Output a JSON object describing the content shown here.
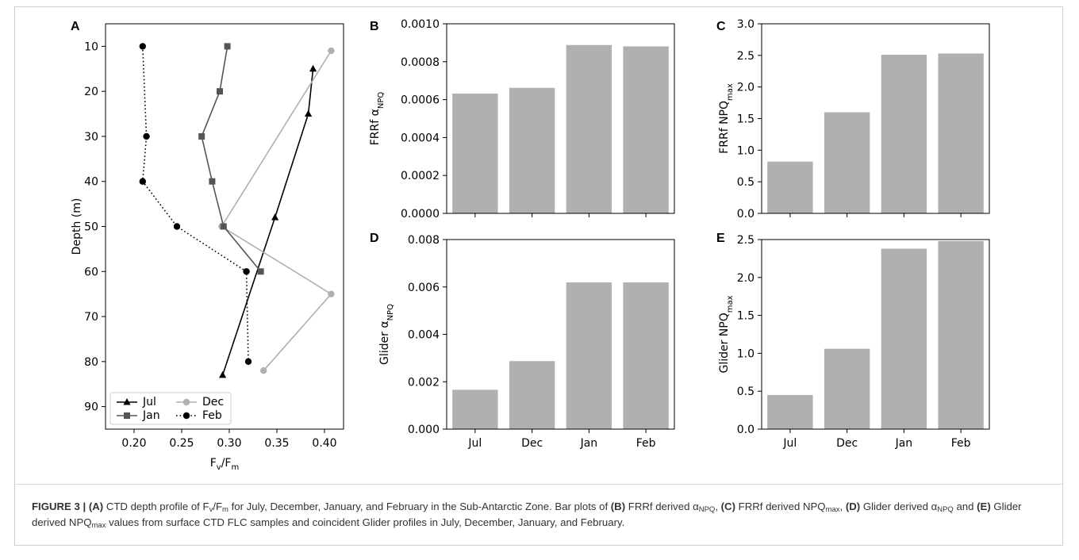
{
  "chart_data": [
    {
      "id": "A",
      "type": "line",
      "panel_label": "A",
      "xlabel_main": "F",
      "xlabel_sub1": "v",
      "xlabel_mid": "/F",
      "xlabel_sub2": "m",
      "ylabel": "Depth (m)",
      "xlim": [
        0.17,
        0.42
      ],
      "ylim": [
        95,
        5
      ],
      "xticks": [
        0.2,
        0.25,
        0.3,
        0.35,
        0.4
      ],
      "yticks": [
        10,
        20,
        30,
        40,
        50,
        60,
        70,
        80,
        90
      ],
      "legend_position": "lower-left",
      "series": [
        {
          "name": "Jul",
          "color": "#000000",
          "marker": "triangle",
          "dash": "solid",
          "points": [
            [
              0.388,
              15
            ],
            [
              0.383,
              25
            ],
            [
              0.348,
              48
            ],
            [
              0.293,
              83
            ]
          ]
        },
        {
          "name": "Dec",
          "color": "#b0b0b0",
          "marker": "circle",
          "dash": "solid",
          "points": [
            [
              0.407,
              11
            ],
            [
              0.292,
              50
            ],
            [
              0.407,
              65
            ],
            [
              0.336,
              82
            ]
          ]
        },
        {
          "name": "Jan",
          "color": "#555555",
          "marker": "square",
          "dash": "solid",
          "points": [
            [
              0.298,
              10
            ],
            [
              0.29,
              20
            ],
            [
              0.271,
              30
            ],
            [
              0.282,
              40
            ],
            [
              0.294,
              50
            ],
            [
              0.333,
              60
            ]
          ]
        },
        {
          "name": "Feb",
          "color": "#000000",
          "marker": "circle",
          "dash": "dotted",
          "points": [
            [
              0.209,
              10
            ],
            [
              0.213,
              30
            ],
            [
              0.209,
              40
            ],
            [
              0.245,
              50
            ],
            [
              0.318,
              60
            ],
            [
              0.32,
              80
            ]
          ]
        }
      ]
    },
    {
      "id": "B",
      "type": "bar",
      "panel_label": "B",
      "ylabel_main": "FRRf α",
      "ylabel_sub": "NPQ",
      "categories": [
        "Jul",
        "Dec",
        "Jan",
        "Feb"
      ],
      "values": [
        0.000632,
        0.000662,
        0.000888,
        0.000881
      ],
      "ylim": [
        0,
        0.001
      ],
      "yticks": [
        "0.0000",
        "0.0002",
        "0.0004",
        "0.0006",
        "0.0008",
        "0.0010"
      ],
      "show_xticks": false
    },
    {
      "id": "C",
      "type": "bar",
      "panel_label": "C",
      "ylabel_main": "FRRf NPQ",
      "ylabel_sub": "max",
      "categories": [
        "Jul",
        "Dec",
        "Jan",
        "Feb"
      ],
      "values": [
        0.82,
        1.6,
        2.51,
        2.53
      ],
      "ylim": [
        0,
        3.0
      ],
      "yticks": [
        "0.0",
        "0.5",
        "1.0",
        "1.5",
        "2.0",
        "2.5",
        "3.0"
      ],
      "show_xticks": false
    },
    {
      "id": "D",
      "type": "bar",
      "panel_label": "D",
      "ylabel_main": "Glider α",
      "ylabel_sub": "NPQ",
      "categories": [
        "Jul",
        "Dec",
        "Jan",
        "Feb"
      ],
      "values": [
        0.00166,
        0.00287,
        0.00619,
        0.00619
      ],
      "ylim": [
        0,
        0.008
      ],
      "yticks": [
        "0.000",
        "0.002",
        "0.004",
        "0.006",
        "0.008"
      ],
      "show_xticks": true
    },
    {
      "id": "E",
      "type": "bar",
      "panel_label": "E",
      "ylabel_main": "Glider NPQ",
      "ylabel_sub": "max",
      "categories": [
        "Jul",
        "Dec",
        "Jan",
        "Feb"
      ],
      "values": [
        0.45,
        1.06,
        2.38,
        2.48
      ],
      "ylim": [
        0,
        2.5
      ],
      "yticks": [
        "0.0",
        "0.5",
        "1.0",
        "1.5",
        "2.0",
        "2.5"
      ],
      "show_xticks": true
    }
  ],
  "colors": {
    "bar": "#b0b0b0",
    "axis": "#000000",
    "caption_text": "#333333"
  },
  "caption": {
    "fig_label": "FIGURE 3 | (A)",
    "t1": " CTD depth profile of F",
    "s1": "v",
    "t2": "/F",
    "s2": "m",
    "t3": " for July, December, January, and February in the Sub-Antarctic Zone. Bar plots of ",
    "b_B": "(B)",
    "t4": " FRRf derived α",
    "s3": "NPQ",
    "t5": ", ",
    "b_C": "(C)",
    "t6": " FRRf derived NPQ",
    "s4": "max",
    "t7": ", ",
    "b_D": "(D)",
    "t8": " Glider derived α",
    "s5": "NPQ",
    "t9": " and ",
    "b_E": "(E)",
    "t10": " Glider derived NPQ",
    "s6": "max",
    "t11": " values from surface CTD FLC samples and coincident Glider profiles in July, December, January, and February."
  }
}
